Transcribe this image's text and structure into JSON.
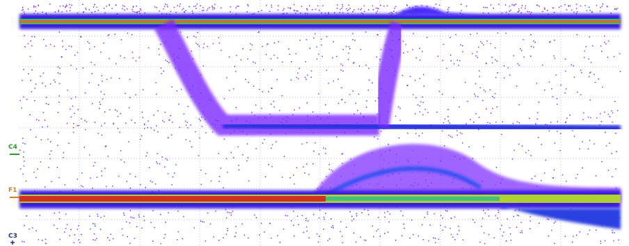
{
  "markers": [
    {
      "label": "C4"
    },
    {
      "label": "F1"
    },
    {
      "label": "C3"
    }
  ]
}
